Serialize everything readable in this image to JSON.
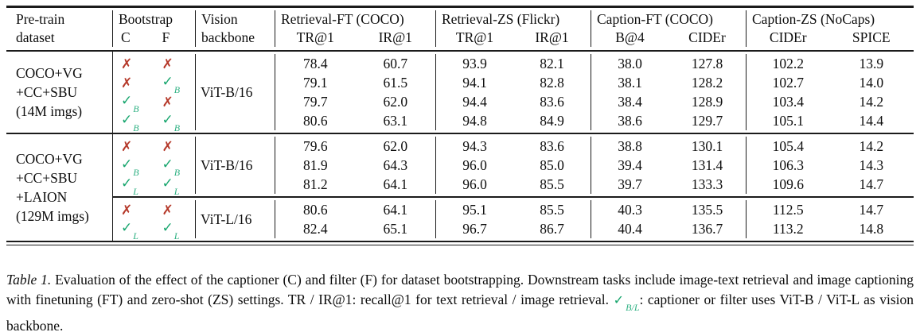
{
  "table": {
    "header": {
      "col_dataset": [
        "Pre-train",
        "dataset"
      ],
      "col_bootstrap": "Bootstrap",
      "col_c": "C",
      "col_f": "F",
      "col_backbone": [
        "Vision",
        "backbone"
      ],
      "groups": [
        {
          "title": "Retrieval-FT (COCO)",
          "sub": [
            "TR@1",
            "IR@1"
          ]
        },
        {
          "title": "Retrieval-ZS (Flickr)",
          "sub": [
            "TR@1",
            "IR@1"
          ]
        },
        {
          "title": "Caption-FT (COCO)",
          "sub": [
            "B@4",
            "CIDEr"
          ]
        },
        {
          "title": "Caption-ZS (NoCaps)",
          "sub": [
            "CIDEr",
            "SPICE"
          ]
        }
      ]
    },
    "blocks": [
      {
        "dataset_lines": [
          "COCO+VG",
          "+CC+SBU",
          "(14M imgs)"
        ],
        "subblocks": [
          {
            "backbone": "ViT-B/16",
            "rows": [
              {
                "c": "cross",
                "f": "cross",
                "values": [
                  "78.4",
                  "60.7",
                  "93.9",
                  "82.1",
                  "38.0",
                  "127.8",
                  "102.2",
                  "13.9"
                ]
              },
              {
                "c": "cross",
                "f": "check-B",
                "values": [
                  "79.1",
                  "61.5",
                  "94.1",
                  "82.8",
                  "38.1",
                  "128.2",
                  "102.7",
                  "14.0"
                ]
              },
              {
                "c": "check-B",
                "f": "cross",
                "values": [
                  "79.7",
                  "62.0",
                  "94.4",
                  "83.6",
                  "38.4",
                  "128.9",
                  "103.4",
                  "14.2"
                ]
              },
              {
                "c": "check-B",
                "f": "check-B",
                "values": [
                  "80.6",
                  "63.1",
                  "94.8",
                  "84.9",
                  "38.6",
                  "129.7",
                  "105.1",
                  "14.4"
                ]
              }
            ]
          }
        ]
      },
      {
        "dataset_lines": [
          "COCO+VG",
          "+CC+SBU",
          "+LAION",
          "(129M imgs)"
        ],
        "subblocks": [
          {
            "backbone": "ViT-B/16",
            "rows": [
              {
                "c": "cross",
                "f": "cross",
                "values": [
                  "79.6",
                  "62.0",
                  "94.3",
                  "83.6",
                  "38.8",
                  "130.1",
                  "105.4",
                  "14.2"
                ]
              },
              {
                "c": "check-B",
                "f": "check-B",
                "values": [
                  "81.9",
                  "64.3",
                  "96.0",
                  "85.0",
                  "39.4",
                  "131.4",
                  "106.3",
                  "14.3"
                ]
              },
              {
                "c": "check-L",
                "f": "check-L",
                "values": [
                  "81.2",
                  "64.1",
                  "96.0",
                  "85.5",
                  "39.7",
                  "133.3",
                  "109.6",
                  "14.7"
                ]
              }
            ]
          },
          {
            "backbone": "ViT-L/16",
            "rows": [
              {
                "c": "cross",
                "f": "cross",
                "values": [
                  "80.6",
                  "64.1",
                  "95.1",
                  "85.5",
                  "40.3",
                  "135.5",
                  "112.5",
                  "14.7"
                ]
              },
              {
                "c": "check-L",
                "f": "check-L",
                "values": [
                  "82.4",
                  "65.1",
                  "96.7",
                  "86.7",
                  "40.4",
                  "136.7",
                  "113.2",
                  "14.8"
                ]
              }
            ]
          }
        ]
      }
    ]
  },
  "caption": {
    "label": "Table 1.",
    "text1": "Evaluation of the effect of the captioner (C) and filter (F) for dataset bootstrapping. Downstream tasks include image-text retrieval and image captioning with finetuning (FT) and zero-shot (ZS) settings. TR / IR@1: recall@1 for text retrieval / image retrieval. ",
    "check_sub": "B/L",
    "text2": ": captioner or filter uses ViT-B / ViT-L as vision backbone."
  },
  "colors": {
    "check": "#16a56d",
    "check_sub": "#2fb183",
    "cross": "#b5392a",
    "rule": "#1b1b1b"
  }
}
